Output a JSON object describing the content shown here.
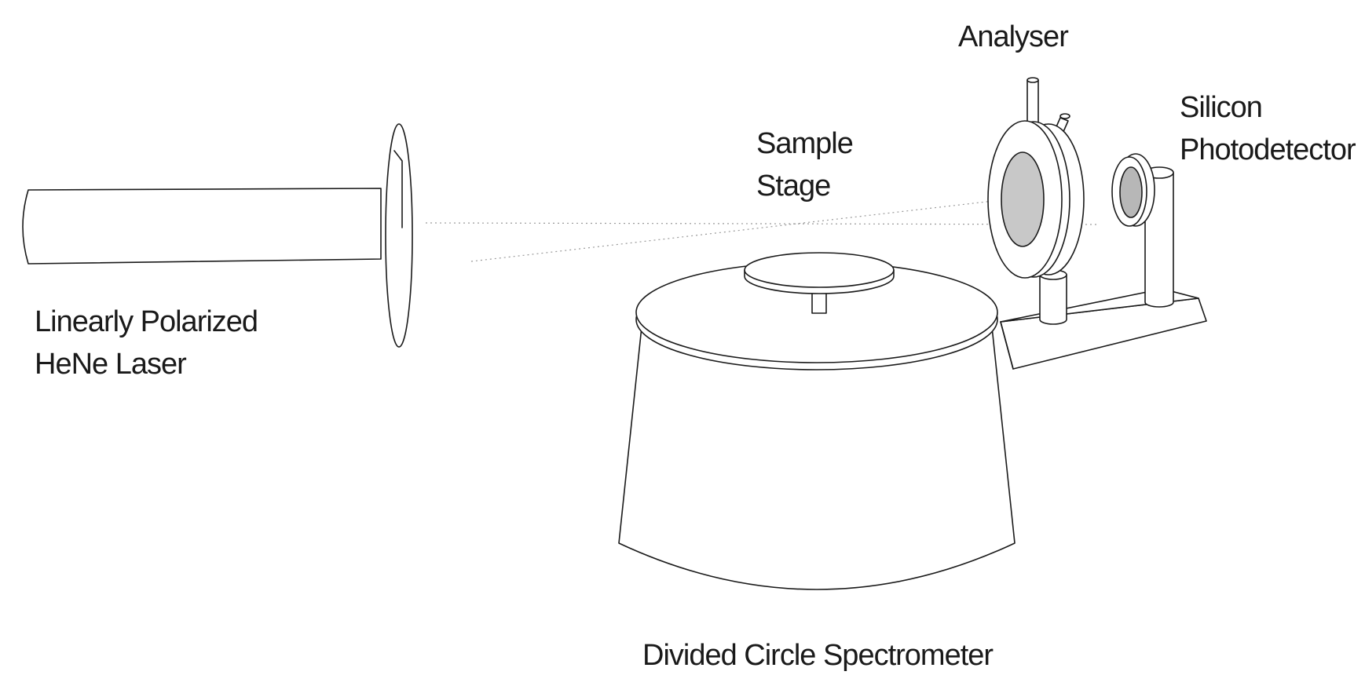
{
  "labels": {
    "laser": {
      "line1": "Linearly Polarized",
      "line2": "HeNe Laser"
    },
    "stage": {
      "line1": "Sample",
      "line2": "Stage"
    },
    "analyser": {
      "line1": "Analyser"
    },
    "detector": {
      "line1": "Silicon",
      "line2": "Photodetector"
    },
    "spectrometer": {
      "line1": "Divided Circle Spectrometer"
    }
  },
  "colors": {
    "line": "#1a1a1a",
    "lens_fill": "#c8c8c8",
    "beam": "#9a9a9a"
  }
}
